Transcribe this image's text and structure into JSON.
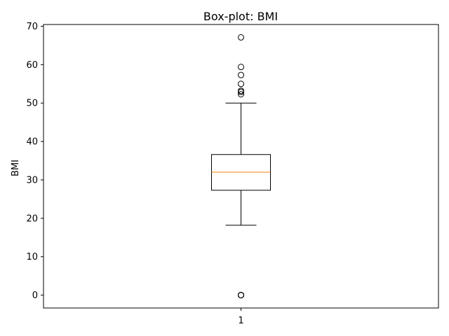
{
  "chart_data": {
    "type": "box",
    "title": "Box-plot: BMI",
    "xlabel": "",
    "ylabel": "BMI",
    "categories": [
      "1"
    ],
    "ylim": [
      -3.35,
      70.45
    ],
    "yticks": [
      0,
      10,
      20,
      30,
      40,
      50,
      60,
      70
    ],
    "grid": false,
    "boxes": [
      {
        "category": "1",
        "whisker_low": 18.2,
        "q1": 27.3,
        "median": 32.0,
        "q3": 36.6,
        "whisker_high": 50.0,
        "outliers": [
          0,
          0,
          0,
          0,
          0,
          52.3,
          52.9,
          53.2,
          55.0,
          57.3,
          59.4,
          67.1
        ]
      }
    ],
    "colors": {
      "box": "#000000",
      "median": "#ff7f0e",
      "outlier_edge": "#000000"
    }
  }
}
